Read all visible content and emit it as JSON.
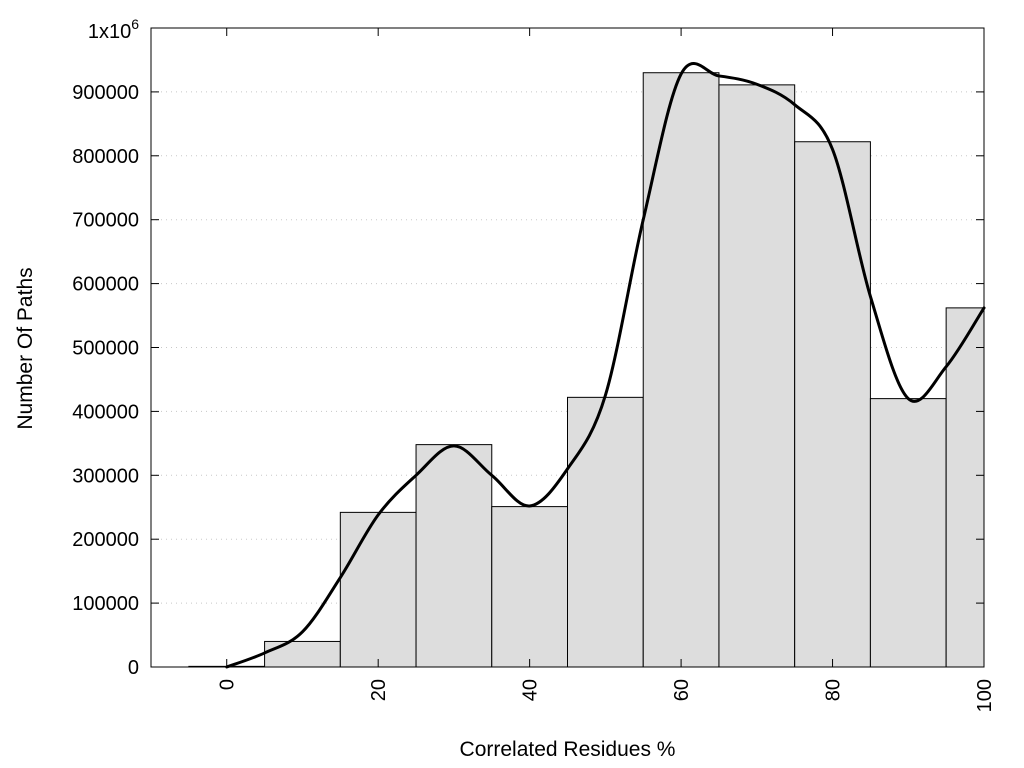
{
  "chart_data": {
    "type": "bar",
    "xlabel": "Correlated Residues %",
    "ylabel": "Number Of Paths",
    "xlim": [
      -10,
      100
    ],
    "ylim": [
      0,
      1000000
    ],
    "grid": true,
    "x_ticks": [
      0,
      20,
      40,
      60,
      80,
      100
    ],
    "x_tick_labels": [
      "0",
      "20",
      "40",
      "60",
      "80",
      "100"
    ],
    "y_ticks": [
      0,
      100000,
      200000,
      300000,
      400000,
      500000,
      600000,
      700000,
      800000,
      900000,
      1000000
    ],
    "y_tick_labels": [
      "0",
      "100000",
      "200000",
      "300000",
      "400000",
      "500000",
      "600000",
      "700000",
      "800000",
      "900000"
    ],
    "y_top_label": {
      "base": "1x10",
      "exp": "6"
    },
    "bin_width": 10,
    "bins": [
      0,
      10,
      20,
      30,
      40,
      50,
      60,
      70,
      80,
      90,
      100
    ],
    "values": [
      1000,
      40000,
      242000,
      348000,
      251000,
      422000,
      930000,
      911000,
      822000,
      420000,
      562000
    ],
    "smooth_curve": {
      "x": [
        0,
        5,
        10,
        15,
        20,
        25,
        30,
        35,
        40,
        45,
        50,
        55,
        60,
        65,
        70,
        75,
        80,
        85,
        90,
        95,
        100
      ],
      "y": [
        0,
        22000,
        55000,
        140000,
        238000,
        300000,
        346000,
        300000,
        252000,
        310000,
        425000,
        700000,
        928000,
        925000,
        912000,
        880000,
        810000,
        580000,
        420000,
        470000,
        562000
      ]
    },
    "colors": {
      "bar_fill": "#dddddd",
      "bar_stroke": "#000000",
      "curve": "#000000",
      "grid": "#c8c8c8"
    }
  }
}
